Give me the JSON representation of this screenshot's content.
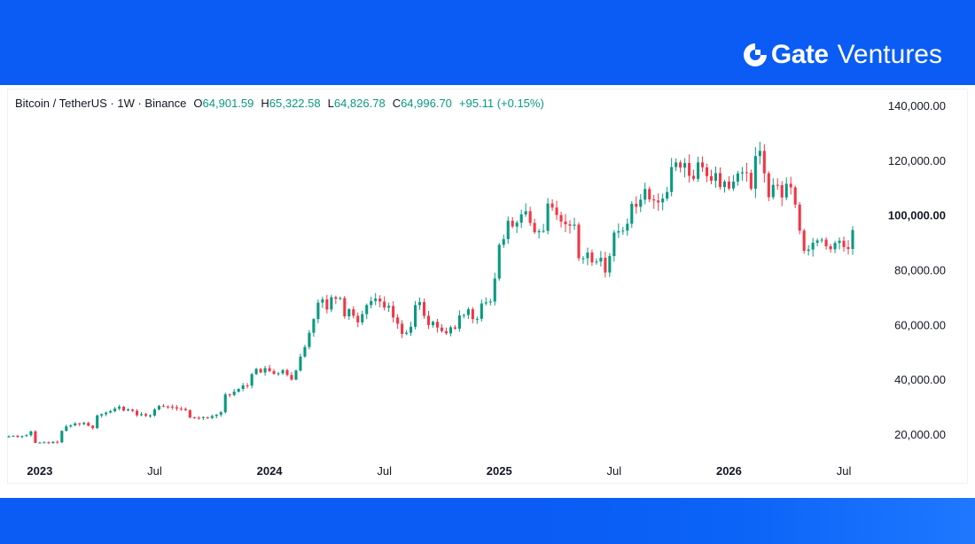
{
  "brand": {
    "name": "Gate",
    "sub": "Ventures"
  },
  "legend": {
    "symbol": "Bitcoin / TetherUS · 1W · Binance",
    "o_label": "O",
    "o": "64,901.59",
    "h_label": "H",
    "h": "65,322.58",
    "l_label": "L",
    "l": "64,826.78",
    "c_label": "C",
    "c": "64,996.70",
    "change": "+95.11 (+0.15%)"
  },
  "colors": {
    "up": "#089981",
    "down": "#f23645",
    "brand_blue": "#0a5cf5"
  },
  "chart_data": {
    "type": "candlestick",
    "title": "Bitcoin / TetherUS · 1W · Binance",
    "ylim": [
      12000,
      145000
    ],
    "y_ticks": [
      {
        "value": 140000,
        "label": "140,000.00",
        "bold": false
      },
      {
        "value": 120000,
        "label": "120,000.00",
        "bold": false
      },
      {
        "value": 100000,
        "label": "100,000.00",
        "bold": true
      },
      {
        "value": 80000,
        "label": "80,000.00",
        "bold": false
      },
      {
        "value": 60000,
        "label": "60,000.00",
        "bold": false
      },
      {
        "value": 40000,
        "label": "40,000.00",
        "bold": false
      },
      {
        "value": 20000,
        "label": "20,000.00",
        "bold": false
      }
    ],
    "x_ticks": [
      {
        "label": "2023",
        "bold": true,
        "week": 7
      },
      {
        "label": "Jul",
        "bold": false,
        "week": 33
      },
      {
        "label": "2024",
        "bold": true,
        "week": 59
      },
      {
        "label": "Jul",
        "bold": false,
        "week": 85
      },
      {
        "label": "2025",
        "bold": true,
        "week": 111
      },
      {
        "label": "Jul",
        "bold": false,
        "week": 137
      },
      {
        "label": "2026",
        "bold": true,
        "week": 163
      },
      {
        "label": "Jul",
        "bold": false,
        "week": 189
      }
    ],
    "grid": false,
    "weekly_closes": [
      19200,
      19400,
      19000,
      19300,
      19600,
      21000,
      16800,
      16900,
      17000,
      16700,
      17200,
      17000,
      21200,
      22800,
      23200,
      23900,
      23600,
      24100,
      23100,
      22200,
      26800,
      27300,
      27900,
      28400,
      29300,
      30000,
      28600,
      29000,
      28500,
      26900,
      27300,
      26700,
      26800,
      29000,
      30300,
      30100,
      30000,
      29800,
      29300,
      29200,
      28700,
      26100,
      26000,
      25900,
      26200,
      25900,
      26600,
      27100,
      28000,
      34500,
      34300,
      35500,
      36500,
      37800,
      37700,
      41900,
      43800,
      42500,
      44100,
      43000,
      42000,
      42200,
      43400,
      41600,
      39900,
      43200,
      48300,
      51800,
      57000,
      62000,
      68000,
      69200,
      65500,
      70000,
      69400,
      69700,
      63000,
      65600,
      63200,
      60800,
      63800,
      67100,
      68600,
      69500,
      68400,
      66200,
      66800,
      62600,
      60300,
      56600,
      57000,
      59200,
      67100,
      68200,
      63200,
      59800,
      61000,
      58900,
      57600,
      56800,
      59000,
      58500,
      63300,
      63500,
      65600,
      62000,
      62100,
      67700,
      68100,
      68400,
      76800,
      89100,
      91200,
      97900,
      95800,
      97200,
      100200,
      101400,
      97100,
      93700,
      94100,
      94200,
      104200,
      102700,
      100000,
      97600,
      96600,
      96100,
      96500,
      84200,
      84200,
      86300,
      82700,
      83000,
      84400,
      79000,
      85000,
      93600,
      94100,
      94300,
      96800,
      104100,
      103000,
      105600,
      109500,
      105700,
      105300,
      104600,
      106000,
      108400,
      117500,
      119200,
      117300,
      119000,
      114300,
      113200,
      119200,
      117400,
      114200,
      112500,
      115300,
      110200,
      112200,
      109700,
      112200,
      115200,
      115600,
      115400,
      109600,
      121500,
      123400,
      115200,
      106500,
      111000,
      110900,
      106400,
      111400,
      110100,
      103800,
      94300,
      86900,
      87400,
      89900,
      90700,
      91000,
      88600,
      87500,
      89800,
      90600,
      88300,
      87600,
      94500
    ]
  }
}
